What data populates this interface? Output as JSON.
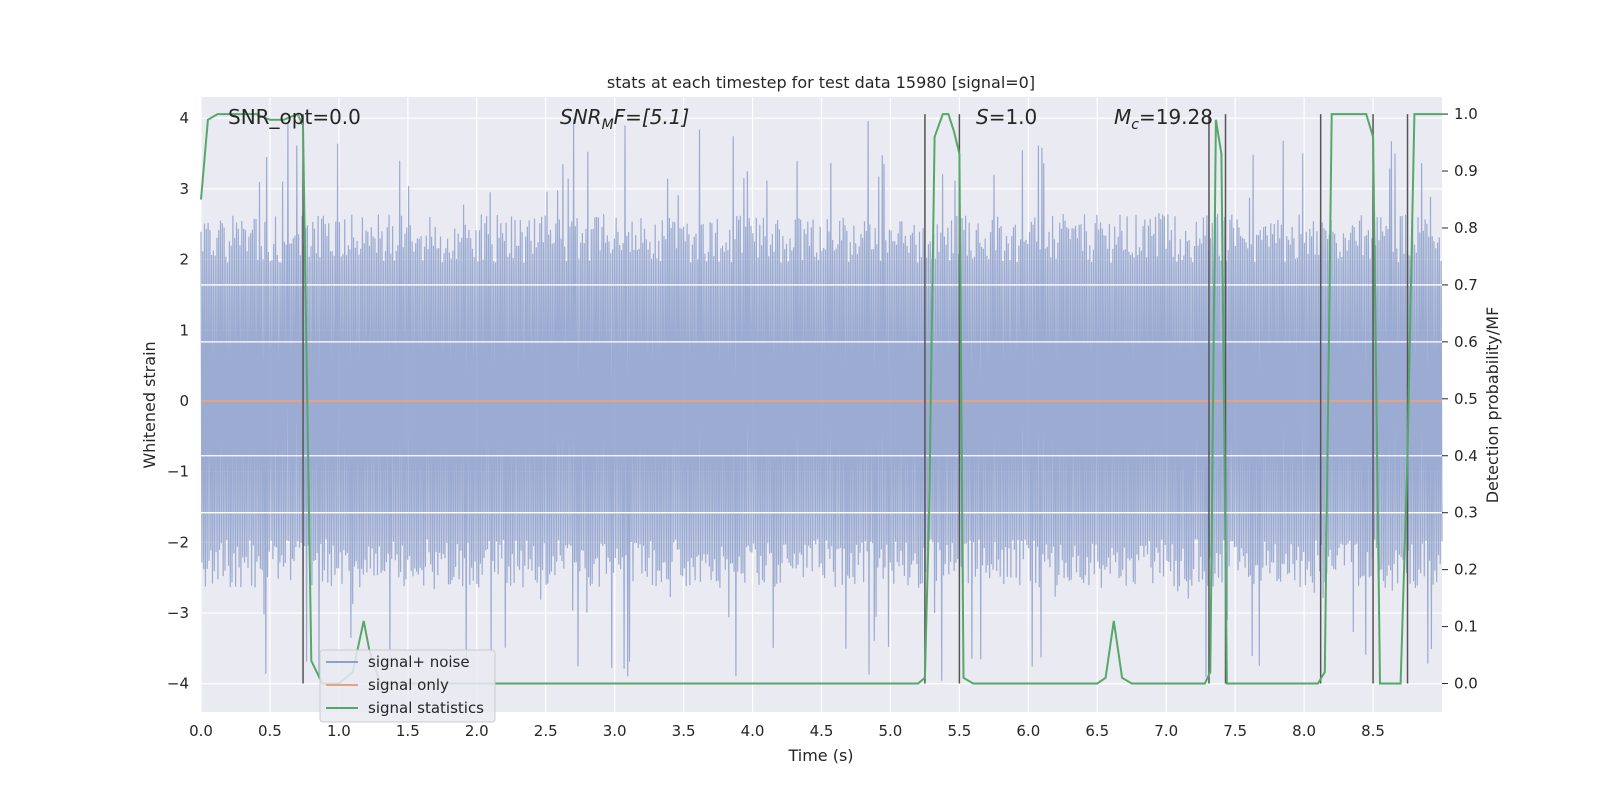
{
  "chart_data": {
    "type": "line",
    "title": "stats at each timestep for test data 15980 [signal=0]",
    "xlabel": "Time (s)",
    "ylabel_left": "Whitened strain",
    "ylabel_right": "Detection probability/MF",
    "xlim": [
      0.0,
      9.0
    ],
    "ylim_left": [
      -4.4,
      4.3
    ],
    "ylim_right": [
      -0.05,
      1.03
    ],
    "grid": true,
    "legend_position": "lower-left",
    "x_ticks": [
      "0.0",
      "0.5",
      "1.0",
      "1.5",
      "2.0",
      "2.5",
      "3.0",
      "3.5",
      "4.0",
      "4.5",
      "5.0",
      "5.5",
      "6.0",
      "6.5",
      "7.0",
      "7.5",
      "8.0",
      "8.5"
    ],
    "y_ticks_left": [
      "−4",
      "−3",
      "−2",
      "−1",
      "0",
      "1",
      "2",
      "3",
      "4"
    ],
    "y_ticks_right": [
      "0.0",
      "0.1",
      "0.2",
      "0.3",
      "0.4",
      "0.5",
      "0.6",
      "0.7",
      "0.8",
      "0.9",
      "1.0"
    ],
    "annotations": {
      "snr_opt": "SNR_opt=0.0",
      "snr_mf_main": "SNR",
      "snr_mf_sub": "M",
      "snr_mf_rest": "F=[5.1]",
      "s_main": "S",
      "s_rest": "=1.0",
      "mc_main": "M",
      "mc_sub": "c",
      "mc_rest": "=19.28"
    },
    "series": [
      {
        "name": "signal+ noise",
        "color": "#8da0cb",
        "axis": "left",
        "description_values": "noise envelope",
        "typical_range": [
          -2.2,
          2.3
        ],
        "max_range": [
          -4.0,
          4.0
        ]
      },
      {
        "name": "signal only",
        "color": "#e5a383",
        "axis": "left",
        "x": [
          0.0,
          9.0
        ],
        "y": [
          0.0,
          0.0
        ]
      },
      {
        "name": "signal statistics",
        "color": "#55a868",
        "axis": "right",
        "x": [
          0.0,
          0.05,
          0.12,
          0.2,
          0.3,
          0.4,
          0.5,
          0.6,
          0.7,
          0.74,
          0.8,
          0.88,
          1.0,
          1.1,
          1.18,
          1.22,
          1.3,
          1.5,
          2.0,
          2.5,
          3.0,
          3.5,
          4.0,
          4.5,
          5.0,
          5.2,
          5.25,
          5.28,
          5.32,
          5.38,
          5.42,
          5.46,
          5.5,
          5.53,
          5.6,
          6.0,
          6.5,
          6.56,
          6.62,
          6.68,
          6.75,
          7.0,
          7.28,
          7.32,
          7.36,
          7.4,
          7.44,
          7.5,
          7.8,
          8.1,
          8.15,
          8.2,
          8.3,
          8.4,
          8.45,
          8.5,
          8.55,
          8.62,
          8.7,
          8.75,
          8.8,
          9.0
        ],
        "y": [
          0.85,
          0.99,
          1.0,
          1.0,
          1.0,
          1.0,
          0.99,
          0.99,
          1.0,
          0.98,
          0.04,
          0.0,
          0.0,
          0.02,
          0.11,
          0.06,
          0.0,
          0.0,
          0.0,
          0.0,
          0.0,
          0.0,
          0.0,
          0.0,
          0.0,
          0.0,
          0.01,
          0.3,
          0.96,
          1.0,
          1.0,
          0.97,
          0.93,
          0.01,
          0.0,
          0.0,
          0.0,
          0.01,
          0.11,
          0.01,
          0.0,
          0.0,
          0.0,
          0.02,
          0.99,
          0.93,
          0.0,
          0.0,
          0.0,
          0.0,
          0.02,
          1.0,
          1.0,
          1.0,
          1.0,
          0.96,
          0.0,
          0.0,
          0.0,
          0.4,
          1.0,
          1.0
        ]
      }
    ],
    "vertical_lines_x": [
      0.74,
      5.25,
      5.5,
      7.31,
      7.43,
      8.12,
      8.5,
      8.75
    ],
    "horizontal_ref_lines_right": [
      0.3,
      0.4,
      0.6,
      0.7
    ]
  }
}
